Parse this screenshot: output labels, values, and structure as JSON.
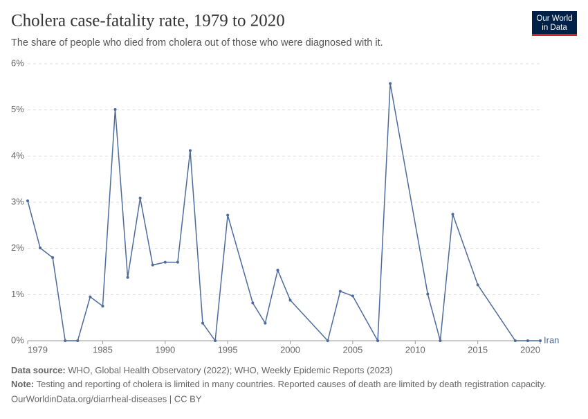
{
  "chart_data": {
    "type": "line",
    "title": "Cholera case-fatality rate, 1979 to 2020",
    "subtitle": "The share of people who died from cholera out of those who were diagnosed with it.",
    "logo": [
      "Our World",
      "in Data"
    ],
    "x": [
      1979,
      1980,
      1981,
      1982,
      1983,
      1984,
      1985,
      1986,
      1987,
      1988,
      1989,
      1990,
      1991,
      1992,
      1993,
      1994,
      1995,
      1997,
      1998,
      1999,
      2000,
      2003,
      2004,
      2005,
      2007,
      2008,
      2011,
      2012,
      2013,
      2015,
      2018,
      2019,
      2020
    ],
    "series": [
      {
        "name": "Iran",
        "color": "#4c6a9c",
        "values": [
          3.03,
          2.01,
          1.8,
          0,
          0,
          0.95,
          0.75,
          5.01,
          1.37,
          3.09,
          1.64,
          1.7,
          1.7,
          4.12,
          0.38,
          0,
          2.72,
          0.82,
          0.38,
          1.53,
          0.88,
          0,
          1.07,
          0.97,
          0,
          5.57,
          1.01,
          0,
          2.74,
          1.21,
          0,
          0,
          0
        ]
      }
    ],
    "xlim": [
      1979,
      2020
    ],
    "xticks": [
      1979,
      1985,
      1990,
      1995,
      2000,
      2005,
      2010,
      2015,
      2020
    ],
    "ylim": [
      0,
      6
    ],
    "yticks": [
      {
        "value": 0,
        "label": "0%"
      },
      {
        "value": 1,
        "label": "1%"
      },
      {
        "value": 2,
        "label": "2%"
      },
      {
        "value": 3,
        "label": "3%"
      },
      {
        "value": 4,
        "label": "4%"
      },
      {
        "value": 5,
        "label": "5%"
      },
      {
        "value": 6,
        "label": "6%"
      }
    ],
    "grid": true,
    "source_label": "Data source:",
    "source": "WHO, Global Health Observatory (2022); WHO, Weekly Epidemic Reports (2023)",
    "note_label": "Note:",
    "note": "Testing and reporting of cholera is limited in many countries. Reported causes of death are limited by death registration capacity.",
    "url": "OurWorldinData.org/diarrheal-diseases | CC BY"
  }
}
